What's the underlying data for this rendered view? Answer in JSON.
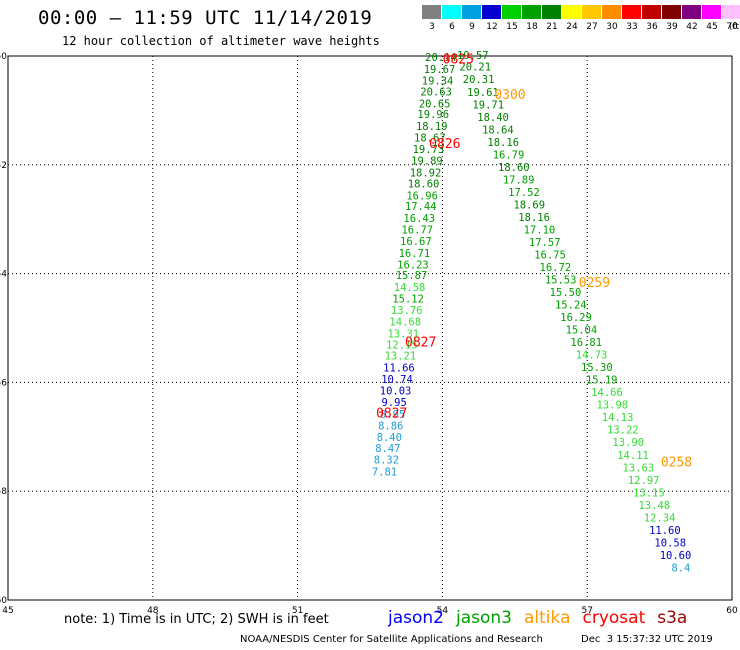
{
  "header": {
    "title": "00:00 – 11:59 UTC 11/14/2019",
    "subtitle": "12 hour collection of altimeter wave heights"
  },
  "scale": {
    "unit": "(ft)",
    "levels": [
      {
        "label": "3",
        "color": "#808080"
      },
      {
        "label": "6",
        "color": "#00ffff"
      },
      {
        "label": "9",
        "color": "#00a0e0"
      },
      {
        "label": "12",
        "color": "#0000d0"
      },
      {
        "label": "15",
        "color": "#00d000"
      },
      {
        "label": "18",
        "color": "#00a000"
      },
      {
        "label": "21",
        "color": "#008000"
      },
      {
        "label": "24",
        "color": "#ffff00"
      },
      {
        "label": "27",
        "color": "#ffc800"
      },
      {
        "label": "30",
        "color": "#ff8c00"
      },
      {
        "label": "33",
        "color": "#ff0000"
      },
      {
        "label": "36",
        "color": "#c00000"
      },
      {
        "label": "39",
        "color": "#800000"
      },
      {
        "label": "42",
        "color": "#800080"
      },
      {
        "label": "45",
        "color": "#ff00ff"
      },
      {
        "label": "70",
        "color": "#ffc0ff"
      },
      {
        "label": "",
        "color": "#000000"
      }
    ]
  },
  "footer": {
    "note": "note: 1) Time is in UTC; 2) SWH is in feet",
    "credit": "NOAA/NESDIS Center for Satellite Applications and Research",
    "timestamp": "Dec  3 15:37:32 UTC 2019",
    "satellites": [
      {
        "name": "jason2",
        "color": "#0000ff"
      },
      {
        "name": "jason3",
        "color": "#00a000"
      },
      {
        "name": "altika",
        "color": "#ff9900"
      },
      {
        "name": "cryosat",
        "color": "#ff0000"
      },
      {
        "name": "s3a",
        "color": "#990000"
      }
    ]
  },
  "chart_data": {
    "type": "scatter",
    "title": "00:00 – 11:59 UTC 11/14/2019",
    "subtitle": "12 hour collection of altimeter wave heights",
    "xlim": [
      45,
      60
    ],
    "ylim": [
      -60,
      -50
    ],
    "x_ticks": [
      "45",
      "48",
      "51",
      "54",
      "57",
      "60"
    ],
    "y_ticks": [
      "-50",
      "-52",
      "-54",
      "-56",
      "-58",
      "-60"
    ],
    "grid": true,
    "colors": {
      "swh_over_21": "#008000",
      "swh_15_21": "#00a000",
      "swh_12_15": "#33dd33",
      "swh_9_12": "#0000c8",
      "swh_6_9": "#1e9ed8",
      "label": "#ff0000",
      "label_altika": "#ff9900"
    },
    "series": [
      {
        "name": "jason3",
        "points": [
          {
            "lon": 53.97,
            "lat": -50.02,
            "swh": "20.14",
            "c": "#008000"
          },
          {
            "lon": 53.94,
            "lat": -50.24,
            "swh": "19.67",
            "c": "#008000"
          },
          {
            "lon": 53.9,
            "lat": -50.45,
            "swh": "19.34",
            "c": "#008000"
          },
          {
            "lon": 53.87,
            "lat": -50.65,
            "swh": "20.63",
            "c": "#008000"
          },
          {
            "lon": 53.84,
            "lat": -50.87,
            "swh": "20.65",
            "c": "#008000"
          },
          {
            "lon": 53.81,
            "lat": -51.07,
            "swh": "19.96",
            "c": "#008000"
          },
          {
            "lon": 53.78,
            "lat": -51.29,
            "swh": "18.19",
            "c": "#008000"
          },
          {
            "lon": 53.74,
            "lat": -51.5,
            "swh": "18.67",
            "c": "#008000"
          },
          {
            "lon": 53.71,
            "lat": -51.71,
            "swh": "19.73",
            "c": "#008000"
          },
          {
            "lon": 53.68,
            "lat": -51.92,
            "swh": "19.89",
            "c": "#008000"
          },
          {
            "lon": 53.65,
            "lat": -52.14,
            "swh": "18.92",
            "c": "#008000"
          },
          {
            "lon": 53.61,
            "lat": -52.34,
            "swh": "18.60",
            "c": "#008000"
          },
          {
            "lon": 53.58,
            "lat": -52.56,
            "swh": "16.96",
            "c": "#00a000"
          },
          {
            "lon": 53.55,
            "lat": -52.76,
            "swh": "17.44",
            "c": "#00a000"
          },
          {
            "lon": 53.52,
            "lat": -52.98,
            "swh": "16.43",
            "c": "#00a000"
          },
          {
            "lon": 53.48,
            "lat": -53.19,
            "swh": "16.77",
            "c": "#00a000"
          },
          {
            "lon": 53.45,
            "lat": -53.4,
            "swh": "16.67",
            "c": "#00a000"
          },
          {
            "lon": 53.42,
            "lat": -53.62,
            "swh": "16.71",
            "c": "#00a000"
          },
          {
            "lon": 53.39,
            "lat": -53.83,
            "swh": "16.23",
            "c": "#00a000"
          },
          {
            "lon": 53.36,
            "lat": -54.03,
            "swh": "15.87",
            "c": "#00a000"
          },
          {
            "lon": 53.32,
            "lat": -54.25,
            "swh": "14.58",
            "c": "#33dd33"
          },
          {
            "lon": 53.29,
            "lat": -54.46,
            "swh": "15.12",
            "c": "#00a000"
          },
          {
            "lon": 53.26,
            "lat": -54.67,
            "swh": "13.76",
            "c": "#33dd33"
          },
          {
            "lon": 53.23,
            "lat": -54.88,
            "swh": "14.68",
            "c": "#33dd33"
          },
          {
            "lon": 53.19,
            "lat": -55.1,
            "swh": "13.31",
            "c": "#33dd33"
          },
          {
            "lon": 53.16,
            "lat": -55.3,
            "swh": "12.15",
            "c": "#33dd33"
          },
          {
            "lon": 53.13,
            "lat": -55.51,
            "swh": "13.21",
            "c": "#33dd33"
          },
          {
            "lon": 53.1,
            "lat": -55.73,
            "swh": "11.66",
            "c": "#0000c8"
          },
          {
            "lon": 53.06,
            "lat": -55.94,
            "swh": "10.74",
            "c": "#0000c8"
          },
          {
            "lon": 53.03,
            "lat": -56.15,
            "swh": "10.03",
            "c": "#0000c8"
          },
          {
            "lon": 53.0,
            "lat": -56.36,
            "swh": "9.95",
            "c": "#0000c8"
          },
          {
            "lon": 52.97,
            "lat": -56.58,
            "swh": "8.95",
            "c": "#1e9ed8"
          },
          {
            "lon": 52.93,
            "lat": -56.79,
            "swh": "8.86",
            "c": "#1e9ed8"
          },
          {
            "lon": 52.9,
            "lat": -57.0,
            "swh": "8.40",
            "c": "#1e9ed8"
          },
          {
            "lon": 52.87,
            "lat": -57.21,
            "swh": "8.47",
            "c": "#1e9ed8"
          },
          {
            "lon": 52.84,
            "lat": -57.42,
            "swh": "8.32",
            "c": "#1e9ed8"
          },
          {
            "lon": 52.8,
            "lat": -57.64,
            "swh": "7.81",
            "c": "#1e9ed8"
          }
        ]
      },
      {
        "name": "jason3-descending",
        "points": [
          {
            "lon": 54.63,
            "lat": -49.98,
            "swh": "19.57",
            "c": "#008000"
          },
          {
            "lon": 54.68,
            "lat": -50.19,
            "swh": "20.21",
            "c": "#008000"
          },
          {
            "lon": 54.75,
            "lat": -50.42,
            "swh": "20.31",
            "c": "#008000"
          },
          {
            "lon": 54.84,
            "lat": -50.66,
            "swh": "19.61",
            "c": "#008000"
          },
          {
            "lon": 54.95,
            "lat": -50.89,
            "swh": "19.71",
            "c": "#008000"
          },
          {
            "lon": 55.05,
            "lat": -51.12,
            "swh": "18.40",
            "c": "#008000"
          },
          {
            "lon": 55.15,
            "lat": -51.35,
            "swh": "18.64",
            "c": "#008000"
          },
          {
            "lon": 55.26,
            "lat": -51.58,
            "swh": "18.16",
            "c": "#008000"
          },
          {
            "lon": 55.37,
            "lat": -51.81,
            "swh": "16.79",
            "c": "#00a000"
          },
          {
            "lon": 55.48,
            "lat": -52.04,
            "swh": "18.60",
            "c": "#008000"
          },
          {
            "lon": 55.58,
            "lat": -52.27,
            "swh": "17.89",
            "c": "#00a000"
          },
          {
            "lon": 55.69,
            "lat": -52.5,
            "swh": "17.52",
            "c": "#00a000"
          },
          {
            "lon": 55.8,
            "lat": -52.73,
            "swh": "18.69",
            "c": "#008000"
          },
          {
            "lon": 55.9,
            "lat": -52.96,
            "swh": "18.16",
            "c": "#008000"
          },
          {
            "lon": 56.01,
            "lat": -53.19,
            "swh": "17.10",
            "c": "#00a000"
          },
          {
            "lon": 56.12,
            "lat": -53.42,
            "swh": "17.57",
            "c": "#00a000"
          },
          {
            "lon": 56.23,
            "lat": -53.65,
            "swh": "16.75",
            "c": "#00a000"
          },
          {
            "lon": 56.34,
            "lat": -53.88,
            "swh": "16.72",
            "c": "#00a000"
          },
          {
            "lon": 56.45,
            "lat": -54.11,
            "swh": "15.53",
            "c": "#00a000"
          },
          {
            "lon": 56.55,
            "lat": -54.34,
            "swh": "15.50",
            "c": "#00a000"
          },
          {
            "lon": 56.66,
            "lat": -54.57,
            "swh": "15.24",
            "c": "#00a000"
          },
          {
            "lon": 56.77,
            "lat": -54.8,
            "swh": "16.29",
            "c": "#00a000"
          },
          {
            "lon": 56.88,
            "lat": -55.03,
            "swh": "15.04",
            "c": "#00a000"
          },
          {
            "lon": 56.98,
            "lat": -55.26,
            "swh": "16.81",
            "c": "#00a000"
          },
          {
            "lon": 57.09,
            "lat": -55.49,
            "swh": "14.73",
            "c": "#33dd33"
          },
          {
            "lon": 57.2,
            "lat": -55.72,
            "swh": "15.30",
            "c": "#00a000"
          },
          {
            "lon": 57.3,
            "lat": -55.95,
            "swh": "15.19",
            "c": "#00a000"
          },
          {
            "lon": 57.41,
            "lat": -56.18,
            "swh": "14.66",
            "c": "#33dd33"
          },
          {
            "lon": 57.52,
            "lat": -56.41,
            "swh": "13.98",
            "c": "#33dd33"
          },
          {
            "lon": 57.63,
            "lat": -56.64,
            "swh": "14.13",
            "c": "#33dd33"
          },
          {
            "lon": 57.74,
            "lat": -56.87,
            "swh": "13.22",
            "c": "#33dd33"
          },
          {
            "lon": 57.85,
            "lat": -57.1,
            "swh": "13.90",
            "c": "#33dd33"
          },
          {
            "lon": 57.95,
            "lat": -57.33,
            "swh": "14.11",
            "c": "#33dd33"
          },
          {
            "lon": 58.06,
            "lat": -57.56,
            "swh": "13.63",
            "c": "#33dd33"
          },
          {
            "lon": 58.17,
            "lat": -57.79,
            "swh": "12.97",
            "c": "#33dd33"
          },
          {
            "lon": 58.28,
            "lat": -58.02,
            "swh": "13.15",
            "c": "#33dd33"
          },
          {
            "lon": 58.39,
            "lat": -58.25,
            "swh": "13.48",
            "c": "#33dd33"
          },
          {
            "lon": 58.5,
            "lat": -58.48,
            "swh": "12.34",
            "c": "#33dd33"
          },
          {
            "lon": 58.61,
            "lat": -58.71,
            "swh": "11.60",
            "c": "#0000c8"
          },
          {
            "lon": 58.72,
            "lat": -58.94,
            "swh": "10.58",
            "c": "#0000c8"
          },
          {
            "lon": 58.83,
            "lat": -59.17,
            "swh": "10.60",
            "c": "#0000c8"
          },
          {
            "lon": 58.94,
            "lat": -59.4,
            "swh": "8.4",
            "c": "#1e9ed8"
          }
        ]
      }
    ],
    "time_labels": [
      {
        "text": "0825",
        "lon": 54.33,
        "lat": -50.05,
        "c": "#ff0000"
      },
      {
        "text": "0300",
        "lon": 55.4,
        "lat": -50.7,
        "c": "#ff9900"
      },
      {
        "text": "0826",
        "lon": 54.05,
        "lat": -51.6,
        "c": "#ff0000"
      },
      {
        "text": "0259",
        "lon": 57.15,
        "lat": -54.15,
        "c": "#ff9900"
      },
      {
        "text": "0827",
        "lon": 53.55,
        "lat": -55.25,
        "c": "#ff0000"
      },
      {
        "text": "0827",
        "lon": 52.95,
        "lat": -56.55,
        "c": "#ff0000"
      },
      {
        "text": "0258",
        "lon": 58.85,
        "lat": -57.45,
        "c": "#ff9900"
      }
    ]
  }
}
